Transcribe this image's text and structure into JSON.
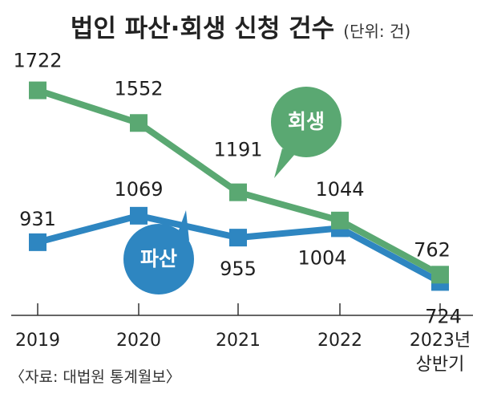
{
  "title": "법인 파산·회생 신청 건수",
  "unit": "(단위: 건)",
  "source": "〈자료: 대법원 통계월보〉",
  "chart_data": {
    "type": "line",
    "title": "법인 파산·회생 신청 건수",
    "unit": "(단위: 건)",
    "categories": [
      "2019",
      "2020",
      "2021",
      "2022",
      "2023년 상반기"
    ],
    "category_lines": [
      [
        "2019"
      ],
      [
        "2020"
      ],
      [
        "2021"
      ],
      [
        "2022"
      ],
      [
        "2023년",
        "상반기"
      ]
    ],
    "ylim": [
      500,
      1900
    ],
    "series": [
      {
        "name": "회생",
        "color": "#5aa872",
        "values": [
          1722,
          1552,
          1191,
          1044,
          762
        ]
      },
      {
        "name": "파산",
        "color": "#2e86c1",
        "values": [
          931,
          1069,
          955,
          1004,
          724
        ]
      }
    ],
    "grid": false,
    "legend": "inline bubbles"
  }
}
